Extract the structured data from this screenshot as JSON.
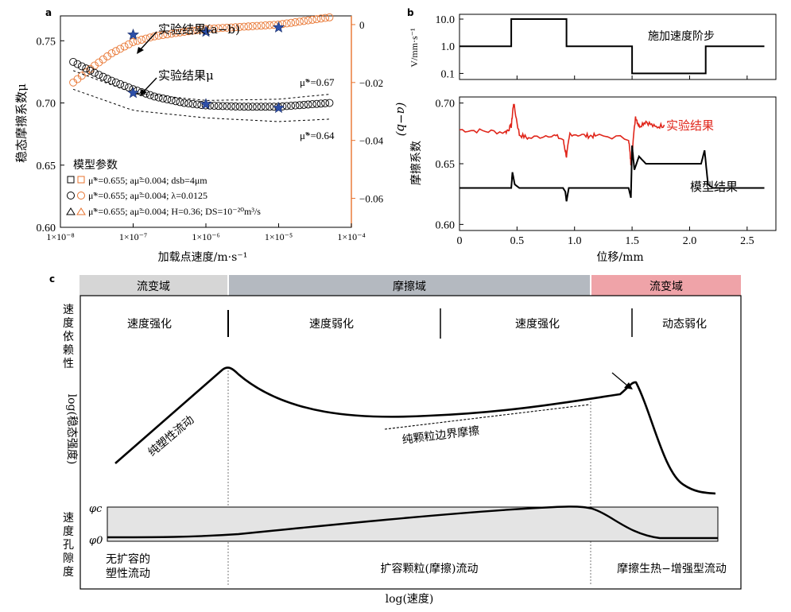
{
  "panel_a": {
    "letter": "a",
    "ylabel": "稳态摩擦系数μ",
    "y2label": "(a−b)",
    "xlabel": "加载点速度/m·s⁻¹",
    "yticks": [
      "0.60",
      "0.65",
      "0.70",
      "0.75"
    ],
    "y2ticks": [
      "0",
      "−0.02",
      "−0.04",
      "−0.06"
    ],
    "xticks": [
      "1×10⁻⁸",
      "1×10⁻⁷",
      "1×10⁻⁶",
      "1×10⁻⁵",
      "1×10⁻⁴"
    ],
    "annot_ab": "实验结果(a−b)",
    "annot_mu": "实验结果μ",
    "mu_hi": "μ̃*=0.67",
    "mu_lo": "μ̃*=0.64",
    "legend_title": "模型参数",
    "legend": [
      "μ̃*=0.655; aμ̃=0.004; dsb=4μm",
      "μ̃*=0.655; aμ̃=0.004; λ=0.0125",
      "μ̃*=0.655; aμ̃=0.004; H=0.36; DS=10⁻²⁰m³/s"
    ],
    "colors": {
      "model_mu": "#000000",
      "model_ab": "#e8732e",
      "experiment": "#2d4fa8"
    }
  },
  "panel_b": {
    "letter": "b",
    "top_ylabel": "V/mm·s⁻¹",
    "top_yticks": [
      "10.0",
      "1.0",
      "0.1"
    ],
    "top_label": "施加速度阶步",
    "bot_ylabel": "摩擦系数",
    "bot_yticks": [
      "0.70",
      "0.65",
      "0.60"
    ],
    "xticks": [
      "0",
      "0.5",
      "1.0",
      "1.5",
      "2.0",
      "2.5"
    ],
    "xlabel": "位移/mm",
    "exp_label": "实验结果",
    "model_label": "模型结果",
    "colors": {
      "experiment": "#e0261b",
      "model": "#000000"
    }
  },
  "panel_c": {
    "letter": "c",
    "band_left": "流变域",
    "band_mid": "摩擦域",
    "band_right": "流变域",
    "band_colors": {
      "left": "#d6d6d6",
      "mid": "#b4b9c0",
      "right": "#efa3a8"
    },
    "row_label": "速度依赖性",
    "regimes": [
      "速度强化",
      "速度弱化",
      "速度强化",
      "动态弱化"
    ],
    "ylabel": "log(稳态强度)",
    "line_plastic": "纯塑性流动",
    "line_granular": "纯颗粒边界摩擦",
    "porosity_label": "速度孔隙度",
    "phi_c": "φc",
    "phi_0": "φ0",
    "flow_labels": [
      "无扩容的\n塑性流动",
      "扩容颗粒(摩擦)流动",
      "摩擦生热−增强型流动"
    ],
    "xlabel": "log(速度)"
  },
  "chart_data": [
    {
      "type": "scatter",
      "panel": "a",
      "xscale": "log",
      "xlim": [
        1e-08,
        0.0001
      ],
      "ylim": [
        0.6,
        0.77
      ],
      "y2lim": [
        -0.07,
        0.003
      ],
      "series": [
        {
          "axis": "left",
          "x": [
            1.5e-08,
            3e-08,
            5e-08,
            1e-07,
            2e-07,
            5e-07,
            1e-06,
            3e-06,
            1e-05,
            5e-05
          ],
          "y": [
            0.733,
            0.724,
            0.718,
            0.711,
            0.705,
            0.7,
            0.698,
            0.697,
            0.697,
            0.7
          ]
        },
        {
          "axis": "right",
          "x": [
            1.5e-08,
            3e-08,
            5e-08,
            1e-07,
            2e-07,
            5e-07,
            1e-06,
            3e-06,
            1e-05,
            5e-05
          ],
          "y": [
            -0.02,
            -0.014,
            -0.01,
            -0.006,
            -0.004,
            -0.0025,
            -0.0015,
            -0.0008,
            0.0,
            0.0025
          ]
        },
        {
          "name": "实验结果(a−b)",
          "axis": "right",
          "x": [
            1e-07,
            1e-06,
            1e-05
          ],
          "y": [
            -0.0035,
            -0.0025,
            -0.001
          ]
        },
        {
          "name": "实验结果μ",
          "axis": "left",
          "x": [
            1e-07,
            1e-06,
            1e-05
          ],
          "y": [
            0.708,
            0.699,
            0.696
          ]
        },
        {
          "name": "μ̃*=0.67",
          "axis": "left",
          "style": "dashed",
          "x": [
            1.5e-08,
            1e-07,
            1e-06,
            1e-05,
            5e-05
          ],
          "y": [
            0.726,
            0.708,
            0.702,
            0.703,
            0.707
          ]
        },
        {
          "name": "μ̃*=0.64",
          "axis": "left",
          "style": "dashed",
          "x": [
            1.5e-08,
            1e-07,
            1e-06,
            1e-05,
            5e-05
          ],
          "y": [
            0.711,
            0.694,
            0.688,
            0.685,
            0.687
          ]
        }
      ]
    },
    {
      "type": "line",
      "panel": "b-top",
      "yscale": "log",
      "xlim": [
        0,
        2.75
      ],
      "ylim": [
        0.06,
        15
      ],
      "series": [
        {
          "x": [
            0,
            0.45,
            0.45,
            0.93,
            0.93,
            1.5,
            1.5,
            2.14,
            2.14,
            2.65
          ],
          "y": [
            1,
            1,
            10,
            10,
            1,
            1,
            0.1,
            0.1,
            1,
            1
          ]
        }
      ]
    },
    {
      "type": "line",
      "panel": "b-bottom",
      "xlim": [
        0,
        2.75
      ],
      "ylim": [
        0.595,
        0.705
      ],
      "series": [
        {
          "name": "实验结果",
          "x": [
            0.0,
            0.2,
            0.4,
            0.45,
            0.47,
            0.52,
            0.6,
            0.8,
            0.9,
            0.93,
            0.96,
            1.1,
            1.18,
            1.47,
            1.49,
            1.53,
            1.56,
            1.62,
            1.7,
            1.78
          ],
          "y": [
            0.678,
            0.677,
            0.676,
            0.681,
            0.7,
            0.674,
            0.671,
            0.674,
            0.67,
            0.656,
            0.675,
            0.673,
            0.673,
            0.671,
            0.65,
            0.689,
            0.681,
            0.685,
            0.68,
            0.682
          ]
        },
        {
          "name": "模型结果",
          "x": [
            0.0,
            0.45,
            0.46,
            0.48,
            0.52,
            0.9,
            0.92,
            0.93,
            0.95,
            1.47,
            1.49,
            1.5,
            1.52,
            1.56,
            1.62,
            1.8,
            2.1,
            2.13,
            2.16,
            2.2,
            2.65
          ],
          "y": [
            0.63,
            0.63,
            0.643,
            0.633,
            0.63,
            0.63,
            0.627,
            0.619,
            0.63,
            0.63,
            0.622,
            0.665,
            0.645,
            0.656,
            0.65,
            0.65,
            0.65,
            0.661,
            0.633,
            0.63,
            0.63
          ]
        }
      ]
    }
  ]
}
